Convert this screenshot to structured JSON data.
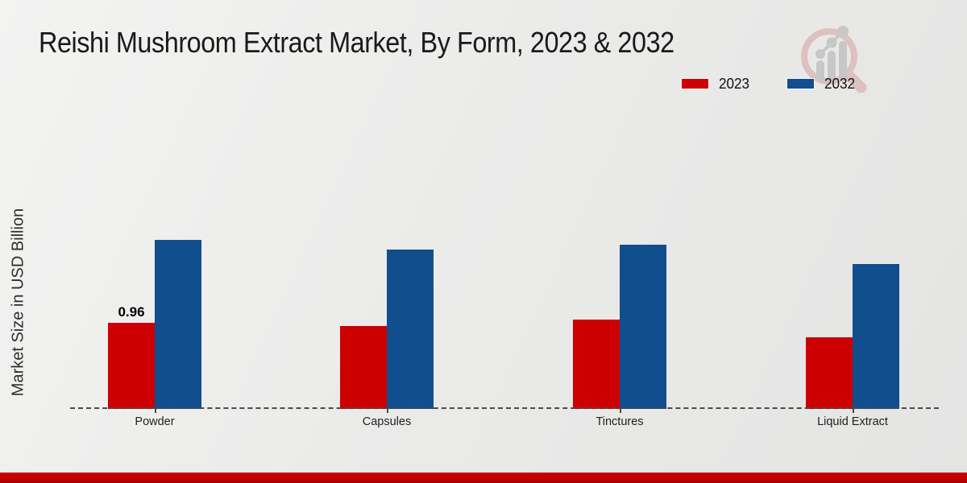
{
  "theme": {
    "background": "#e9e9e8",
    "footer_bar_color": "#c00000",
    "baseline_color": "#4a4a4a",
    "title_color": "#1a1a1a"
  },
  "icons": {
    "watermark": "magnifier-bar-chart-logo"
  },
  "chart_data": {
    "type": "bar",
    "title": "Reishi Mushroom Extract Market, By Form, 2023 & 2032",
    "ylabel": "Market Size in USD Billion",
    "xlabel": "",
    "categories": [
      "Powder",
      "Capsules",
      "Tinctures",
      "Liquid Extract"
    ],
    "series": [
      {
        "name": "2023",
        "color": "#cc0000",
        "values": [
          0.96,
          0.92,
          1.0,
          0.8
        ]
      },
      {
        "name": "2032",
        "color": "#114e8d",
        "values": [
          1.88,
          1.78,
          1.83,
          1.61
        ]
      }
    ],
    "data_labels": [
      {
        "series": "2023",
        "category": "Powder",
        "text": "0.96"
      }
    ],
    "ylim": [
      0,
      2.2
    ],
    "value_axis_ticks": "hidden",
    "grid": false,
    "legend_position": "top-right",
    "baseline_style": "dashed"
  }
}
